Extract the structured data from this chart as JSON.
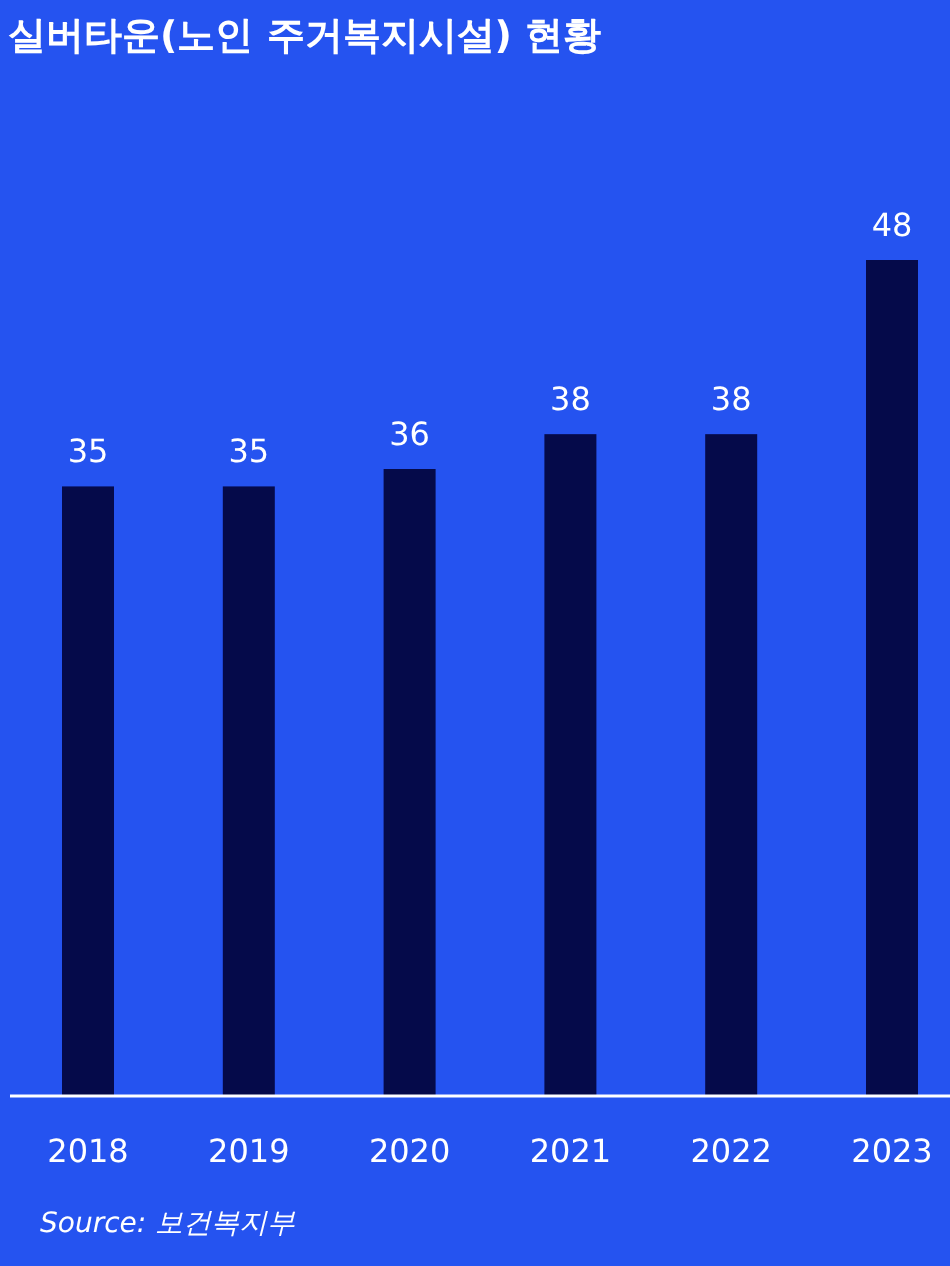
{
  "chart_data": {
    "type": "bar",
    "title": "실버타운(노인 주거복지시설) 현황",
    "categories": [
      "2018",
      "2019",
      "2020",
      "2021",
      "2022",
      "2023"
    ],
    "values": [
      35,
      35,
      36,
      38,
      38,
      48
    ],
    "color": "#050a4a",
    "data_labels": true,
    "annotations": [
      "Source: 보건복지부"
    ]
  }
}
